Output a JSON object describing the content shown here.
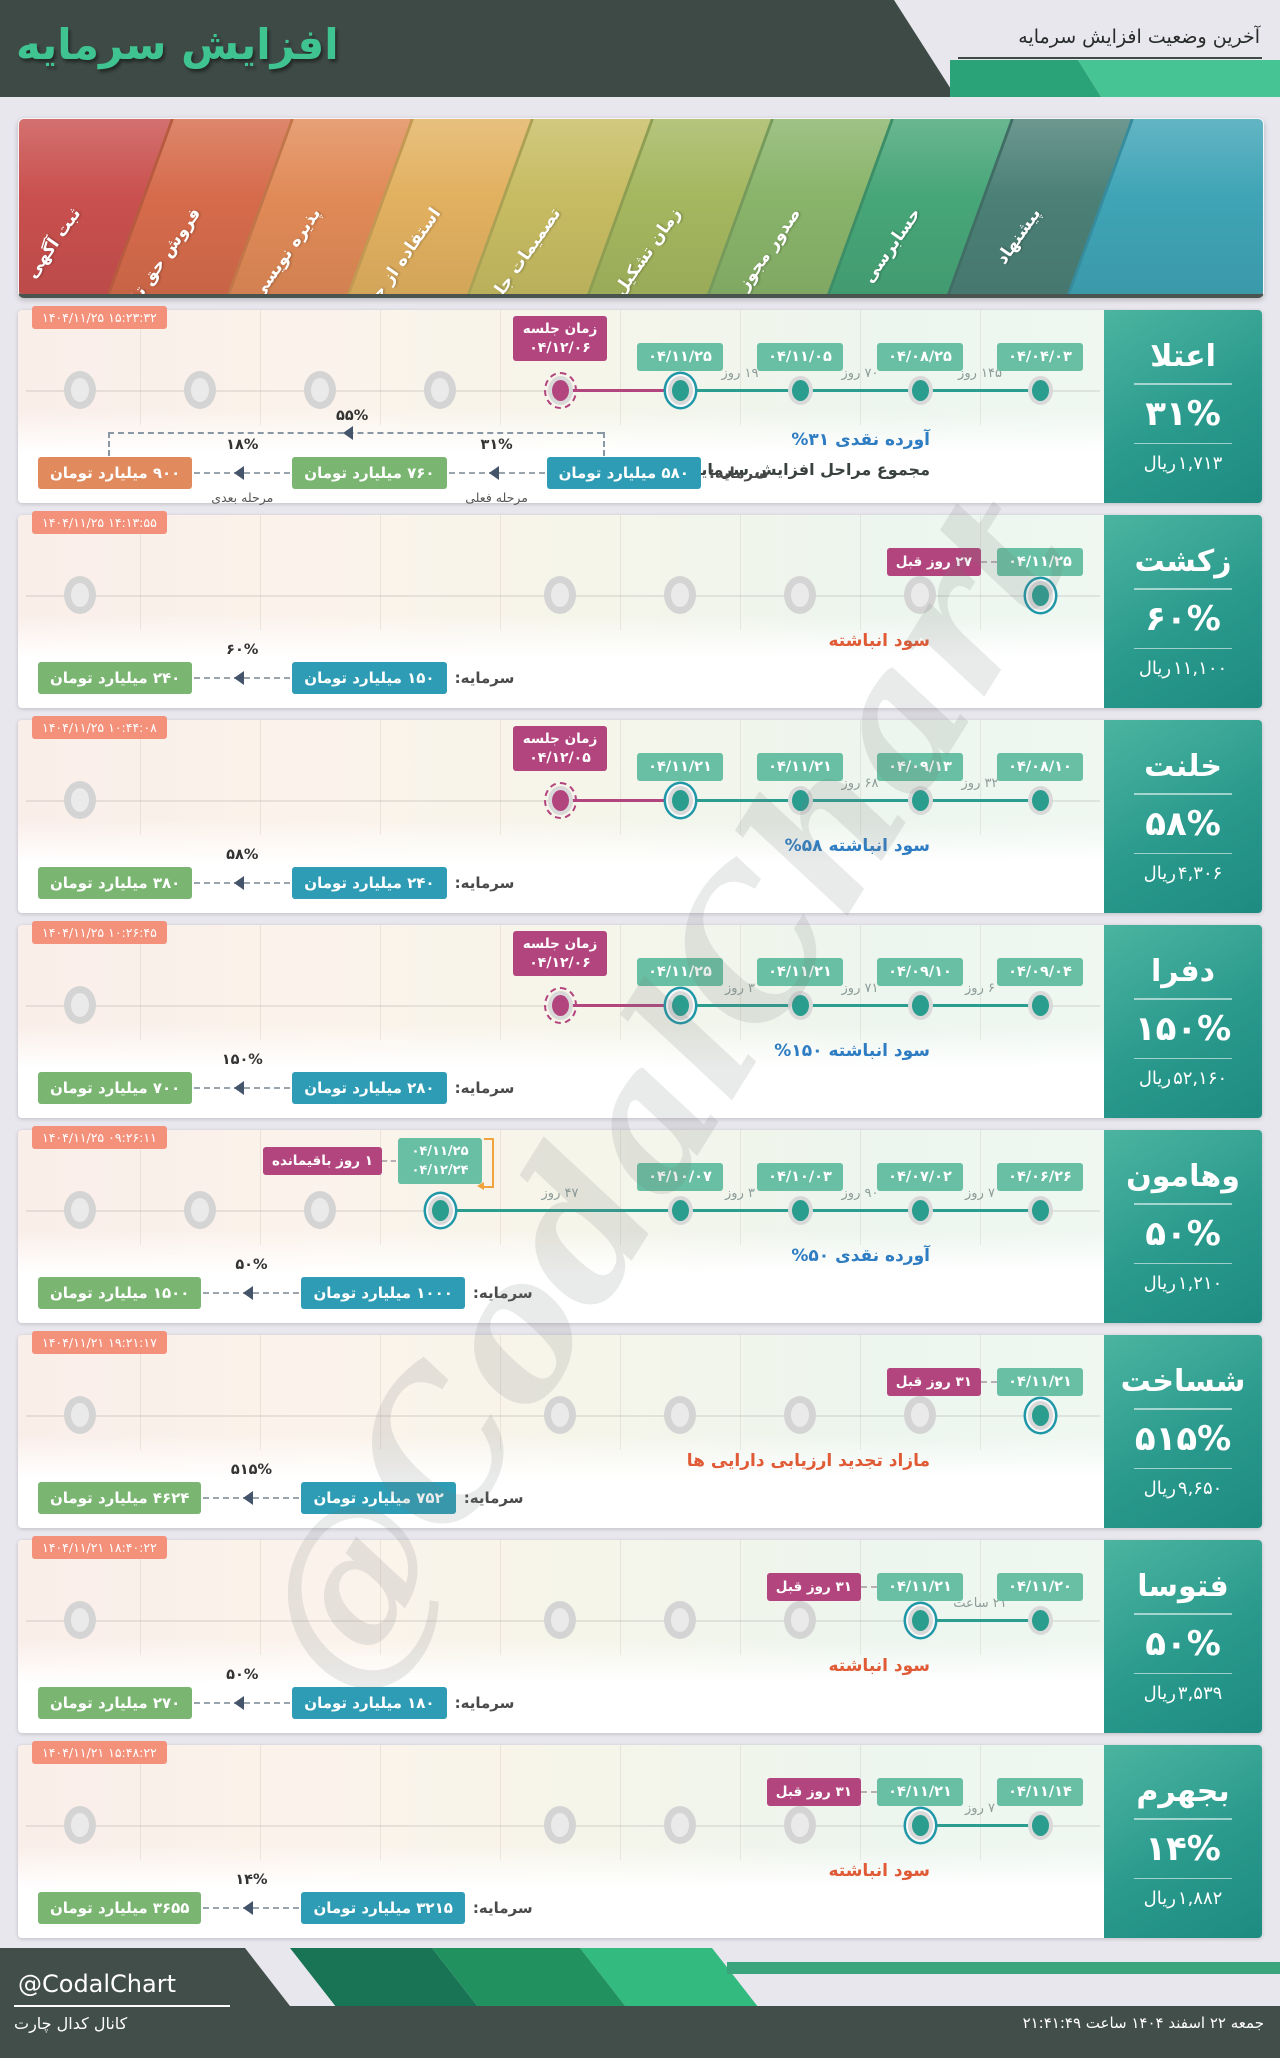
{
  "header": {
    "title": "افزایش سرمایه",
    "subtitle": "آخرین وضعیت افزایش سرمایه"
  },
  "stages": [
    {
      "label": "ثبت آگهی",
      "color": "#c9504e"
    },
    {
      "label": "فروش حق تقدم",
      "color": "#d66b4b"
    },
    {
      "label": "پذیره نویسی",
      "color": "#e18a57"
    },
    {
      "label": "استفاده از حق تقدم",
      "color": "#e2b160"
    },
    {
      "label": "تصمیمات جلسه",
      "color": "#c7bc62"
    },
    {
      "label": "زمان تشکیل جلسه",
      "color": "#a5b75f"
    },
    {
      "label": "صدور مجوز",
      "color": "#89b46a"
    },
    {
      "label": "حسابرسی",
      "color": "#47a678"
    },
    {
      "label": "پیشنهاد",
      "color": "#4b8076"
    },
    {
      "label": "",
      "color": "#3fa4b6"
    }
  ],
  "strings": {
    "rial_unit": "ریال",
    "capital_label": "سرمایه:",
    "meeting_label": "زمان جلسه"
  },
  "colors": {
    "teal": "#2a9d8f",
    "magenta": "#b3457e",
    "blue_badge": "#2d9cb4",
    "green_badge": "#7ab671",
    "orange_badge": "#e08a5d",
    "note_blue": "#2e7cc2",
    "note_orange": "#df5a35"
  },
  "rows": [
    {
      "timestamp": "۱۴۰۴/۱۱/۲۵ ۱۵:۲۳:۳۲",
      "card": {
        "name": "اعتلا",
        "pct": "۳۱%",
        "rial": "۱,۷۱۳"
      },
      "meeting": {
        "date": "۰۴/۱۲/۰۶",
        "col": 5
      },
      "events": [
        {
          "col": 6,
          "date": "۰۴/۱۱/۲۵",
          "ringed": true
        },
        {
          "col": 7,
          "date": "۰۴/۱۱/۰۵"
        },
        {
          "col": 8,
          "date": "۰۴/۰۸/۲۵"
        },
        {
          "col": 9,
          "date": "۰۴/۰۴/۰۳"
        }
      ],
      "gaps": [
        {
          "a": 6,
          "b": 7,
          "label": "۱۹ روز"
        },
        {
          "a": 7,
          "b": 8,
          "label": "۷۰ روز"
        },
        {
          "a": 8,
          "b": 9,
          "label": "۱۴۵ روز"
        }
      ],
      "grays": [
        1,
        2,
        3,
        4
      ],
      "segments": [
        {
          "from": 5,
          "to": 6,
          "color": "magenta"
        },
        {
          "from": 6,
          "to": 9,
          "color": "teal"
        }
      ],
      "note": {
        "pct": "%۳۱",
        "text": "آورده نقدی",
        "color": "blue"
      },
      "note2": {
        "pct": "%۵۵",
        "text": "مجموع مراحل افزایش سرمایه:"
      },
      "capital": {
        "base": "۵۸۰ میلیارد تومان",
        "steps": [
          {
            "value": "۷۶۰ میلیارد تومان",
            "pct": "۳۱%",
            "sub": "مرحله فعلی",
            "color": "green"
          },
          {
            "value": "۹۰۰ میلیارد تومان",
            "pct": "۱۸%",
            "sub": "مرحله بعدی",
            "color": "orange"
          }
        ],
        "total_pct": "۵۵%"
      }
    },
    {
      "timestamp": "۱۴۰۴/۱۱/۲۵ ۱۴:۱۳:۵۵",
      "card": {
        "name": "زکشت",
        "pct": "۶۰%",
        "rial": "۱۱,۱۰۰"
      },
      "ago": {
        "label": "۲۷ روز قبل",
        "col": 9,
        "date": "۰۴/۱۱/۲۵"
      },
      "events": [
        {
          "col": 9,
          "date": "۰۴/۱۱/۲۵",
          "ringed": true,
          "noBadge": true
        }
      ],
      "gaps": [],
      "grays": [
        1,
        5,
        6,
        7,
        8
      ],
      "segments": [],
      "note": {
        "text": "سود انباشته",
        "color": "orange"
      },
      "capital": {
        "base": "۱۵۰ میلیارد تومان",
        "steps": [
          {
            "value": "۲۴۰ میلیارد تومان",
            "pct": "۶۰%",
            "color": "green"
          }
        ]
      }
    },
    {
      "timestamp": "۱۴۰۴/۱۱/۲۵ ۱۰:۴۴:۰۸",
      "card": {
        "name": "خلنت",
        "pct": "۵۸%",
        "rial": "۴,۳۰۶"
      },
      "meeting": {
        "date": "۰۴/۱۲/۰۵",
        "col": 5
      },
      "events": [
        {
          "col": 6,
          "date": "۰۴/۱۱/۲۱",
          "ringed": true
        },
        {
          "col": 7,
          "date": "۰۴/۱۱/۲۱"
        },
        {
          "col": 8,
          "date": "۰۴/۰۹/۱۳"
        },
        {
          "col": 9,
          "date": "۰۴/۰۸/۱۰"
        }
      ],
      "gaps": [
        {
          "a": 7,
          "b": 8,
          "label": "۶۸ روز"
        },
        {
          "a": 8,
          "b": 9,
          "label": "۳۲ روز"
        }
      ],
      "grays": [
        1
      ],
      "segments": [
        {
          "from": 5,
          "to": 6,
          "color": "magenta"
        },
        {
          "from": 6,
          "to": 9,
          "color": "teal"
        }
      ],
      "note": {
        "pct": "%۵۸",
        "text": "سود انباشته",
        "color": "blue"
      },
      "capital": {
        "base": "۲۴۰ میلیارد تومان",
        "steps": [
          {
            "value": "۳۸۰ میلیارد تومان",
            "pct": "۵۸%",
            "color": "green"
          }
        ]
      }
    },
    {
      "timestamp": "۱۴۰۴/۱۱/۲۵ ۱۰:۲۶:۴۵",
      "card": {
        "name": "دفرا",
        "pct": "۱۵۰%",
        "rial": "۵۲,۱۶۰"
      },
      "meeting": {
        "date": "۰۴/۱۲/۰۶",
        "col": 5
      },
      "events": [
        {
          "col": 6,
          "date": "۰۴/۱۱/۲۵",
          "ringed": true
        },
        {
          "col": 7,
          "date": "۰۴/۱۱/۲۱"
        },
        {
          "col": 8,
          "date": "۰۴/۰۹/۱۰"
        },
        {
          "col": 9,
          "date": "۰۴/۰۹/۰۴"
        }
      ],
      "gaps": [
        {
          "a": 6,
          "b": 7,
          "label": "۳ روز"
        },
        {
          "a": 7,
          "b": 8,
          "label": "۷۱ روز"
        },
        {
          "a": 8,
          "b": 9,
          "label": "۶ روز"
        }
      ],
      "grays": [
        1
      ],
      "segments": [
        {
          "from": 5,
          "to": 6,
          "color": "magenta"
        },
        {
          "from": 6,
          "to": 9,
          "color": "teal"
        }
      ],
      "note": {
        "pct": "%۱۵۰",
        "text": "سود انباشته",
        "color": "blue"
      },
      "capital": {
        "base": "۲۸۰ میلیارد تومان",
        "steps": [
          {
            "value": "۷۰۰ میلیارد تومان",
            "pct": "۱۵۰%",
            "color": "green"
          }
        ]
      }
    },
    {
      "timestamp": "۱۴۰۴/۱۱/۲۵ ۰۹:۲۶:۱۱",
      "card": {
        "name": "وهامون",
        "pct": "۵۰%",
        "rial": "۱,۲۱۰"
      },
      "remain": {
        "label": "۱ روز باقیمانده",
        "col": 4,
        "date_top": "۰۴/۱۱/۲۵",
        "date_bottom": "۰۴/۱۲/۲۴"
      },
      "events": [
        {
          "col": 4,
          "ringed": true,
          "noBadge": true
        },
        {
          "col": 6,
          "date": "۰۴/۱۰/۰۷"
        },
        {
          "col": 7,
          "date": "۰۴/۱۰/۰۳"
        },
        {
          "col": 8,
          "date": "۰۴/۰۷/۰۲"
        },
        {
          "col": 9,
          "date": "۰۴/۰۶/۲۶"
        }
      ],
      "gaps": [
        {
          "a": 4,
          "b": 6,
          "label": "۴۷ روز"
        },
        {
          "a": 6,
          "b": 7,
          "label": "۳ روز"
        },
        {
          "a": 7,
          "b": 8,
          "label": "۹۰ روز"
        },
        {
          "a": 8,
          "b": 9,
          "label": "۷ روز"
        }
      ],
      "grays": [
        1,
        2,
        3
      ],
      "segments": [
        {
          "from": 4,
          "to": 9,
          "color": "teal"
        }
      ],
      "note": {
        "pct": "%۵۰",
        "text": "آورده نقدی",
        "color": "blue"
      },
      "capital": {
        "base": "۱۰۰۰ میلیارد تومان",
        "steps": [
          {
            "value": "۱۵۰۰ میلیارد تومان",
            "pct": "۵۰%",
            "color": "green"
          }
        ]
      }
    },
    {
      "timestamp": "۱۴۰۴/۱۱/۲۱ ۱۹:۲۱:۱۷",
      "card": {
        "name": "شساخت",
        "pct": "۵۱۵%",
        "rial": "۹,۶۵۰"
      },
      "ago": {
        "label": "۳۱ روز قبل",
        "col": 9,
        "date": "۰۴/۱۱/۲۱"
      },
      "events": [
        {
          "col": 9,
          "date": "۰۴/۱۱/۲۱",
          "ringed": true,
          "noBadge": true
        }
      ],
      "gaps": [],
      "grays": [
        1,
        5,
        6,
        7,
        8
      ],
      "segments": [],
      "note": {
        "text": "مازاد تجدید ارزیابی دارایی ها",
        "color": "orange"
      },
      "capital": {
        "base": "۷۵۲ میلیارد تومان",
        "steps": [
          {
            "value": "۴۶۲۴ میلیارد تومان",
            "pct": "۵۱۵%",
            "color": "green"
          }
        ]
      }
    },
    {
      "timestamp": "۱۴۰۴/۱۱/۲۱ ۱۸:۴۰:۲۲",
      "card": {
        "name": "فتوسا",
        "pct": "۵۰%",
        "rial": "۳,۵۳۹"
      },
      "ago": {
        "label": "۳۱ روز قبل",
        "col": 8,
        "date": "۰۴/۱۱/۲۱"
      },
      "events": [
        {
          "col": 8,
          "date": "۰۴/۱۱/۲۱",
          "ringed": true,
          "noBadge": true
        },
        {
          "col": 9,
          "date": "۰۴/۱۱/۲۰"
        }
      ],
      "gaps": [
        {
          "a": 8,
          "b": 9,
          "label": "۲۱ ساعت"
        }
      ],
      "grays": [
        1,
        5,
        6,
        7
      ],
      "segments": [
        {
          "from": 8,
          "to": 9,
          "color": "teal"
        }
      ],
      "note": {
        "text": "سود انباشته",
        "color": "orange"
      },
      "capital": {
        "base": "۱۸۰ میلیارد تومان",
        "steps": [
          {
            "value": "۲۷۰ میلیارد تومان",
            "pct": "۵۰%",
            "color": "green"
          }
        ]
      }
    },
    {
      "timestamp": "۱۴۰۴/۱۱/۲۱ ۱۵:۴۸:۲۲",
      "card": {
        "name": "بجهرم",
        "pct": "۱۴%",
        "rial": "۱,۸۸۲"
      },
      "ago": {
        "label": "۳۱ روز قبل",
        "col": 8,
        "date": "۰۴/۱۱/۲۱"
      },
      "events": [
        {
          "col": 8,
          "date": "۰۴/۱۱/۲۱",
          "ringed": true,
          "noBadge": true
        },
        {
          "col": 9,
          "date": "۰۴/۱۱/۱۴"
        }
      ],
      "gaps": [
        {
          "a": 8,
          "b": 9,
          "label": "۷ روز"
        }
      ],
      "grays": [
        1,
        5,
        6,
        7
      ],
      "segments": [
        {
          "from": 8,
          "to": 9,
          "color": "teal"
        }
      ],
      "note": {
        "text": "سود انباشته",
        "color": "orange"
      },
      "capital": {
        "base": "۳۲۱۵ میلیارد تومان",
        "steps": [
          {
            "value": "۳۶۵۵ میلیارد تومان",
            "pct": "۱۴%",
            "color": "green"
          }
        ]
      }
    }
  ],
  "watermark": "@CodalChart",
  "footer": {
    "handle": "@CodalChart",
    "channel": "کانال کدال چارت",
    "date": "جمعه ۲۲ اسفند ۱۴۰۴ ساعت ۲۱:۴۱:۴۹"
  }
}
